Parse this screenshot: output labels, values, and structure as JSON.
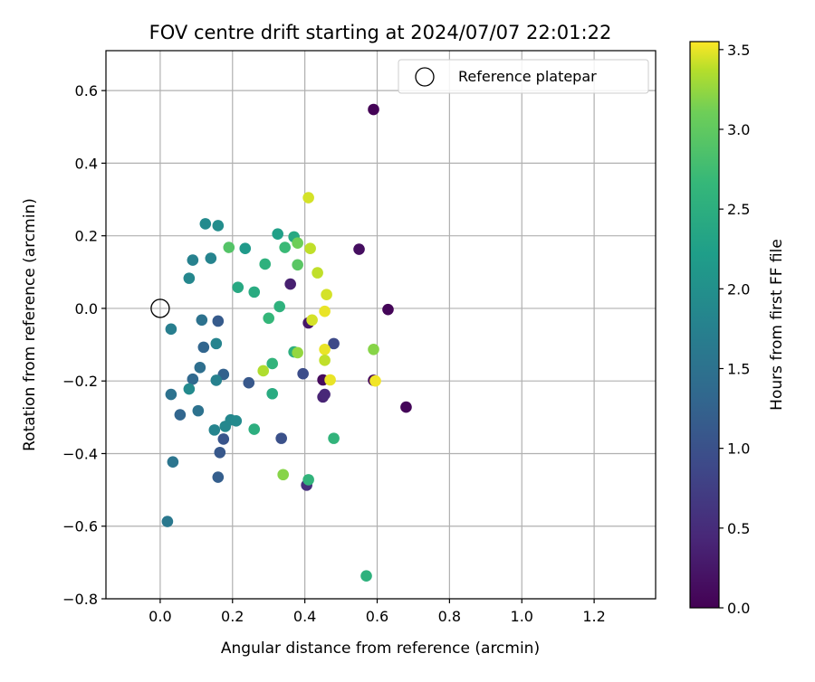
{
  "chart_data": {
    "type": "scatter",
    "title": "FOV centre drift starting at 2024/07/07 22:01:22",
    "xlabel": "Angular distance from reference (arcmin)",
    "ylabel": "Rotation from reference (arcmin)",
    "xlim": [
      -0.15,
      1.37
    ],
    "ylim": [
      -0.8,
      0.71
    ],
    "xticks": [
      0.0,
      0.2,
      0.4,
      0.6,
      0.8,
      1.0,
      1.2
    ],
    "xtick_labels": [
      "0.0",
      "0.2",
      "0.4",
      "0.6",
      "0.8",
      "1.0",
      "1.2"
    ],
    "yticks": [
      -0.8,
      -0.6,
      -0.4,
      -0.2,
      0.0,
      0.2,
      0.4,
      0.6
    ],
    "ytick_labels": [
      "−0.8",
      "−0.6",
      "−0.4",
      "−0.2",
      "0.0",
      "0.2",
      "0.4",
      "0.6"
    ],
    "grid": true,
    "legend": {
      "position": "top-right",
      "entries": [
        "Reference platepar"
      ]
    },
    "reference_point": {
      "name": "Reference platepar",
      "x": 0.0,
      "y": 0.0
    },
    "colorbar": {
      "label": "Hours from first FF file",
      "range": [
        0.0,
        3.55
      ],
      "ticks": [
        0.0,
        0.5,
        1.0,
        1.5,
        2.0,
        2.5,
        3.0,
        3.5
      ],
      "tick_labels": [
        "0.0",
        "0.5",
        "1.0",
        "1.5",
        "2.0",
        "2.5",
        "3.0",
        "3.5"
      ],
      "colormap": "viridis"
    },
    "points": [
      {
        "x": 0.59,
        "y": 0.548,
        "c": 0.02
      },
      {
        "x": 0.55,
        "y": 0.163,
        "c": 0.15
      },
      {
        "x": 0.36,
        "y": 0.067,
        "c": 0.35
      },
      {
        "x": 0.63,
        "y": -0.003,
        "c": 0.05
      },
      {
        "x": 0.41,
        "y": -0.04,
        "c": 0.25
      },
      {
        "x": 0.45,
        "y": -0.197,
        "c": 0.1
      },
      {
        "x": 0.59,
        "y": -0.198,
        "c": 0.08
      },
      {
        "x": 0.68,
        "y": -0.272,
        "c": 0.05
      },
      {
        "x": 0.45,
        "y": -0.244,
        "c": 0.4
      },
      {
        "x": 0.455,
        "y": -0.237,
        "c": 0.45
      },
      {
        "x": 0.405,
        "y": -0.487,
        "c": 0.55
      },
      {
        "x": 0.48,
        "y": -0.097,
        "c": 0.9
      },
      {
        "x": 0.395,
        "y": -0.18,
        "c": 0.95
      },
      {
        "x": 0.335,
        "y": -0.358,
        "c": 1.0
      },
      {
        "x": 0.245,
        "y": -0.205,
        "c": 1.1
      },
      {
        "x": 0.175,
        "y": -0.36,
        "c": 1.05
      },
      {
        "x": 0.165,
        "y": -0.397,
        "c": 1.1
      },
      {
        "x": 0.16,
        "y": -0.465,
        "c": 1.2
      },
      {
        "x": 0.16,
        "y": -0.035,
        "c": 1.15
      },
      {
        "x": 0.175,
        "y": -0.182,
        "c": 1.25
      },
      {
        "x": 0.12,
        "y": -0.107,
        "c": 1.3
      },
      {
        "x": 0.055,
        "y": -0.293,
        "c": 1.3
      },
      {
        "x": 0.09,
        "y": -0.195,
        "c": 1.35
      },
      {
        "x": 0.115,
        "y": -0.032,
        "c": 1.5
      },
      {
        "x": 0.11,
        "y": -0.163,
        "c": 1.45
      },
      {
        "x": 0.105,
        "y": -0.282,
        "c": 1.5
      },
      {
        "x": 0.03,
        "y": -0.237,
        "c": 1.5
      },
      {
        "x": 0.035,
        "y": -0.423,
        "c": 1.55
      },
      {
        "x": 0.02,
        "y": -0.587,
        "c": 1.6
      },
      {
        "x": 0.03,
        "y": -0.057,
        "c": 1.7
      },
      {
        "x": 0.155,
        "y": -0.097,
        "c": 1.8
      },
      {
        "x": 0.155,
        "y": -0.198,
        "c": 1.75
      },
      {
        "x": 0.15,
        "y": -0.335,
        "c": 1.8
      },
      {
        "x": 0.18,
        "y": -0.325,
        "c": 1.85
      },
      {
        "x": 0.195,
        "y": -0.307,
        "c": 1.85
      },
      {
        "x": 0.21,
        "y": -0.31,
        "c": 1.9
      },
      {
        "x": 0.08,
        "y": -0.222,
        "c": 1.9
      },
      {
        "x": 0.08,
        "y": 0.083,
        "c": 1.85
      },
      {
        "x": 0.09,
        "y": 0.133,
        "c": 1.75
      },
      {
        "x": 0.14,
        "y": 0.138,
        "c": 1.8
      },
      {
        "x": 0.125,
        "y": 0.233,
        "c": 1.9
      },
      {
        "x": 0.16,
        "y": 0.228,
        "c": 1.95
      },
      {
        "x": 0.235,
        "y": 0.165,
        "c": 2.15
      },
      {
        "x": 0.325,
        "y": 0.205,
        "c": 2.25
      },
      {
        "x": 0.37,
        "y": 0.197,
        "c": 2.4
      },
      {
        "x": 0.29,
        "y": 0.122,
        "c": 2.55
      },
      {
        "x": 0.215,
        "y": 0.058,
        "c": 2.4
      },
      {
        "x": 0.26,
        "y": 0.045,
        "c": 2.45
      },
      {
        "x": 0.33,
        "y": 0.005,
        "c": 2.55
      },
      {
        "x": 0.3,
        "y": -0.027,
        "c": 2.65
      },
      {
        "x": 0.37,
        "y": -0.12,
        "c": 2.5
      },
      {
        "x": 0.31,
        "y": -0.152,
        "c": 2.6
      },
      {
        "x": 0.31,
        "y": -0.235,
        "c": 2.45
      },
      {
        "x": 0.26,
        "y": -0.333,
        "c": 2.5
      },
      {
        "x": 0.41,
        "y": -0.472,
        "c": 2.6
      },
      {
        "x": 0.48,
        "y": -0.358,
        "c": 2.6
      },
      {
        "x": 0.57,
        "y": -0.737,
        "c": 2.55
      },
      {
        "x": 0.345,
        "y": 0.168,
        "c": 2.7
      },
      {
        "x": 0.19,
        "y": 0.168,
        "c": 2.9
      },
      {
        "x": 0.38,
        "y": 0.12,
        "c": 2.95
      },
      {
        "x": 0.38,
        "y": 0.18,
        "c": 3.1
      },
      {
        "x": 0.34,
        "y": -0.458,
        "c": 3.2
      },
      {
        "x": 0.38,
        "y": -0.122,
        "c": 3.25
      },
      {
        "x": 0.285,
        "y": -0.172,
        "c": 3.35
      },
      {
        "x": 0.59,
        "y": -0.113,
        "c": 3.2
      },
      {
        "x": 0.41,
        "y": 0.305,
        "c": 3.45
      },
      {
        "x": 0.415,
        "y": 0.165,
        "c": 3.4
      },
      {
        "x": 0.435,
        "y": 0.098,
        "c": 3.4
      },
      {
        "x": 0.46,
        "y": 0.038,
        "c": 3.45
      },
      {
        "x": 0.455,
        "y": -0.008,
        "c": 3.5
      },
      {
        "x": 0.42,
        "y": -0.032,
        "c": 3.45
      },
      {
        "x": 0.455,
        "y": -0.113,
        "c": 3.5
      },
      {
        "x": 0.455,
        "y": -0.143,
        "c": 3.4
      },
      {
        "x": 0.47,
        "y": -0.197,
        "c": 3.5
      },
      {
        "x": 0.595,
        "y": -0.2,
        "c": 3.52
      }
    ]
  }
}
